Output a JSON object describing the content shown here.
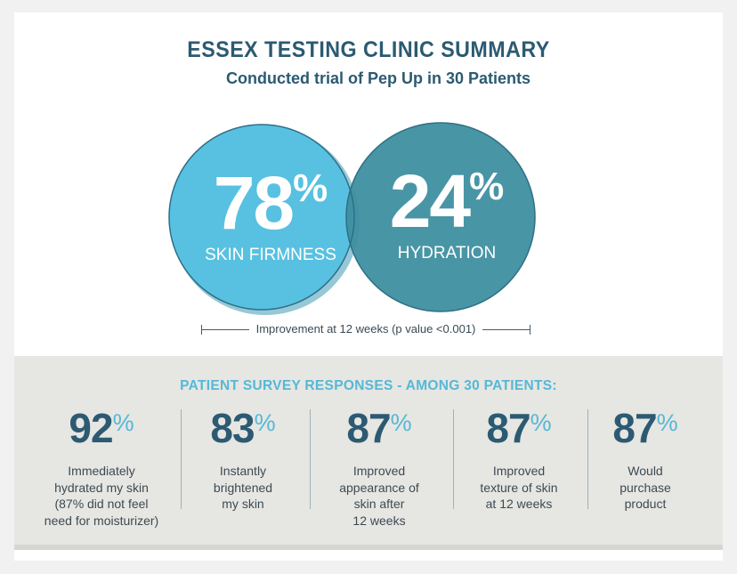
{
  "header": {
    "title": "ESSEX TESTING CLINIC SUMMARY",
    "subtitle": "Conducted trial of Pep Up in 30 Patients"
  },
  "circles": [
    {
      "value": "78",
      "suffix": "%",
      "label": "SKIN FIRMNESS",
      "color": "#58c1e1"
    },
    {
      "value": "24",
      "suffix": "%",
      "label": "HYDRATION",
      "color": "#3e8fa0"
    }
  ],
  "improvement_note": "Improvement at 12 weeks (p value <0.001)",
  "survey": {
    "title": "PATIENT SURVEY RESPONSES - AMONG 30 PATIENTS:",
    "items": [
      {
        "value": "92",
        "suffix": "%",
        "lines": [
          "Immediately",
          "hydrated my skin",
          "(87% did not feel",
          "need for moisturizer)"
        ]
      },
      {
        "value": "83",
        "suffix": "%",
        "lines": [
          "Instantly",
          "brightened",
          "my skin"
        ]
      },
      {
        "value": "87",
        "suffix": "%",
        "lines": [
          "Improved",
          "appearance of",
          "skin after",
          "12 weeks"
        ]
      },
      {
        "value": "87",
        "suffix": "%",
        "lines": [
          "Improved",
          "texture of skin",
          "at 12 weeks"
        ]
      },
      {
        "value": "87",
        "suffix": "%",
        "lines": [
          "Would",
          "purchase",
          "product"
        ]
      }
    ]
  },
  "colors": {
    "navy": "#2c5a72",
    "light_blue": "#55b8d6",
    "survey_bg": "#e6e6e2"
  }
}
